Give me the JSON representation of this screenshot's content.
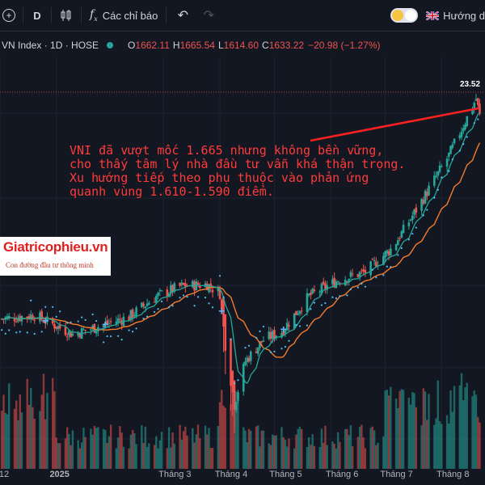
{
  "toolbar": {
    "add_icon": "plus-circle-icon",
    "interval": "D",
    "candles_icon": "candles-icon",
    "indicators_label": "Các chỉ báo",
    "undo_icon": "undo-icon",
    "redo_icon": "redo-icon",
    "theme_toggle_icon": "moon-icon",
    "flag_icon": "uk-flag-icon",
    "guide_label": "Hướng d"
  },
  "legend": {
    "symbol": "VN Index · 1D · HOSE",
    "open_key": "O",
    "open": "1662.11",
    "high_key": "H",
    "high": "1665.54",
    "low_key": "L",
    "low": "1614.60",
    "close_key": "C",
    "close": "1633.22",
    "change": "−20.98 (−1.27%)"
  },
  "annotation": {
    "lines": [
      "VNI đã vượt mốc 1.665 nhưng không bền vững,",
      "cho thấy tâm lý nhà đầu tư vẫn khá thận trọng.",
      "Xu hướng tiếp theo phụ thuộc vào phản ứng",
      "quanh vùng 1.610-1.590 điểm."
    ]
  },
  "logo": {
    "title": "Giatricophieu.vn",
    "subtitle": "Con đường đầu tư thông minh"
  },
  "price_tag": "23.52",
  "colors": {
    "background": "#131722",
    "up": "#26a69a",
    "down": "#ef5350",
    "ma_fast": "#26a69a",
    "ma_slow": "#f57c2b",
    "psar": "#4fc3f7",
    "annotation": "#ff3b3b"
  },
  "chart_data": {
    "type": "candlestick",
    "xlabel": "",
    "ylabel": "",
    "x_ticks": [
      "12",
      "2025",
      "Tháng 3",
      "Tháng 4",
      "Tháng 5",
      "Tháng 6",
      "Tháng 7",
      "Tháng 8"
    ],
    "ylim": [
      1050,
      1700
    ],
    "grid": true,
    "close_path": [
      {
        "x": "2024-12-01",
        "close": 1258
      },
      {
        "x": "2024-12-20",
        "close": 1265
      },
      {
        "x": "2025-01-10",
        "close": 1230
      },
      {
        "x": "2025-01-25",
        "close": 1245
      },
      {
        "x": "2025-02-10",
        "close": 1262
      },
      {
        "x": "2025-02-25",
        "close": 1300
      },
      {
        "x": "2025-03-10",
        "close": 1318
      },
      {
        "x": "2025-03-25",
        "close": 1322
      },
      {
        "x": "2025-04-01",
        "close": 1305
      },
      {
        "x": "2025-04-04",
        "close": 1210
      },
      {
        "x": "2025-04-09",
        "close": 1100
      },
      {
        "x": "2025-04-15",
        "close": 1180
      },
      {
        "x": "2025-04-25",
        "close": 1220
      },
      {
        "x": "2025-05-05",
        "close": 1235
      },
      {
        "x": "2025-05-20",
        "close": 1300
      },
      {
        "x": "2025-06-05",
        "close": 1330
      },
      {
        "x": "2025-06-20",
        "close": 1345
      },
      {
        "x": "2025-07-05",
        "close": 1390
      },
      {
        "x": "2025-07-20",
        "close": 1470
      },
      {
        "x": "2025-08-05",
        "close": 1560
      },
      {
        "x": "2025-08-15",
        "close": 1630
      },
      {
        "x": "2025-08-20",
        "close": 1665
      },
      {
        "x": "2025-08-22",
        "close": 1633
      }
    ],
    "overlays": [
      "fast moving average",
      "slow moving average",
      "parabolic SAR"
    ],
    "volume": "shown as green/red bars at bottom"
  }
}
